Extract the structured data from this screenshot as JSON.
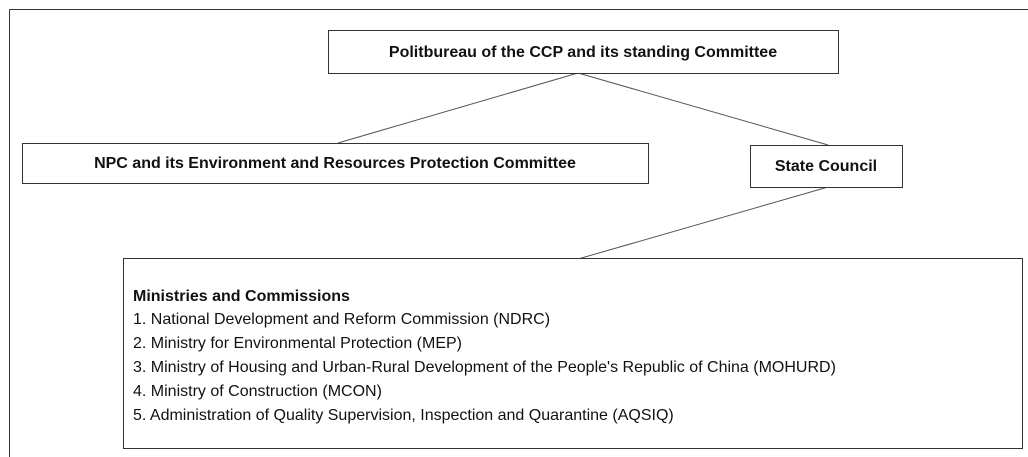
{
  "nodes": [
    {
      "label": "Politbureau of the CCP and its standing Committee"
    },
    {
      "label": "NPC and its Environment and Resources Protection Committee"
    },
    {
      "label": "State Council"
    }
  ],
  "ministries": {
    "title": "Ministries and Commissions",
    "items": [
      "1. National Development and Reform Commission (NDRC)",
      "2. Ministry for Environmental Protection (MEP)",
      "3. Ministry of Housing and Urban-Rural Development of the People's Republic of China (MOHURD)",
      "4. Ministry of Construction (MCON)",
      "5. Administration of Quality Supervision, Inspection and Quarantine (AQSIQ)"
    ]
  }
}
